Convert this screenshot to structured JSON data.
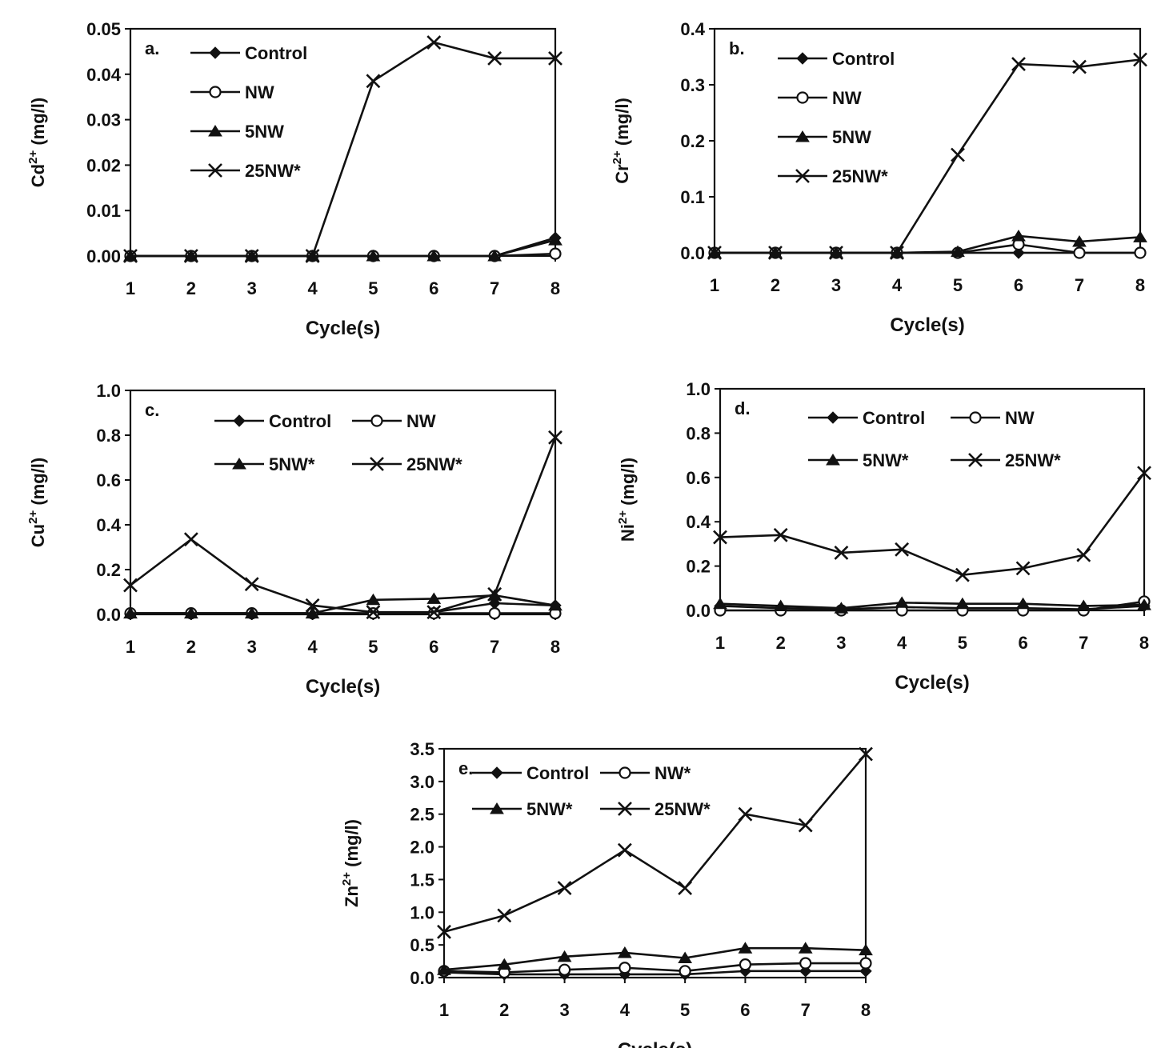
{
  "colors": {
    "ink": "#111111",
    "background": "#ffffff"
  },
  "chart_data": [
    {
      "type": "line",
      "panel_label": "a.",
      "ylabel_base": "Cd",
      "ylabel_sup": "2+",
      "ylabel_unit": " (mg/l)",
      "xlabel": "Cycle(s)",
      "x": [
        1,
        2,
        3,
        4,
        5,
        6,
        7,
        8
      ],
      "ylim": [
        0,
        0.05
      ],
      "yticks": [
        "0.00",
        "0.01",
        "0.02",
        "0.03",
        "0.04",
        "0.05"
      ],
      "legend_layout": "column",
      "series": [
        {
          "name": "Control",
          "marker": "diamond",
          "values": [
            0,
            0,
            0,
            0,
            0,
            0,
            0,
            0.004
          ]
        },
        {
          "name": "NW",
          "marker": "circle",
          "values": [
            0,
            0,
            0,
            0,
            0,
            0,
            0,
            0.0005
          ]
        },
        {
          "name": "5NW",
          "marker": "triangle",
          "values": [
            0,
            0,
            0,
            0,
            0,
            0,
            0,
            0.0035
          ]
        },
        {
          "name": "25NW*",
          "marker": "x",
          "values": [
            0,
            0,
            0,
            0,
            0.0385,
            0.047,
            0.0435,
            0.0435
          ]
        }
      ]
    },
    {
      "type": "line",
      "panel_label": "b.",
      "ylabel_base": "Cr",
      "ylabel_sup": "2+",
      "ylabel_unit": " (mg/l)",
      "xlabel": "Cycle(s)",
      "x": [
        1,
        2,
        3,
        4,
        5,
        6,
        7,
        8
      ],
      "ylim": [
        0,
        0.4
      ],
      "yticks": [
        "0.0",
        "0.1",
        "0.2",
        "0.3",
        "0.4"
      ],
      "legend_layout": "column",
      "series": [
        {
          "name": "Control",
          "marker": "diamond",
          "values": [
            0,
            0,
            0,
            0,
            0,
            0,
            0,
            0
          ]
        },
        {
          "name": "NW",
          "marker": "circle",
          "values": [
            0,
            0,
            0,
            0,
            0,
            0.015,
            0,
            0
          ]
        },
        {
          "name": "5NW",
          "marker": "triangle",
          "values": [
            0,
            0,
            0,
            0,
            0.002,
            0.03,
            0.02,
            0.028
          ]
        },
        {
          "name": "25NW*",
          "marker": "x",
          "values": [
            0,
            0,
            0,
            0,
            0.175,
            0.337,
            0.332,
            0.345
          ]
        }
      ]
    },
    {
      "type": "line",
      "panel_label": "c.",
      "ylabel_base": "Cu",
      "ylabel_sup": "2+",
      "ylabel_unit": " (mg/l)",
      "xlabel": "Cycle(s)",
      "x": [
        1,
        2,
        3,
        4,
        5,
        6,
        7,
        8
      ],
      "ylim": [
        0,
        1.0
      ],
      "yticks": [
        "0.0",
        "0.2",
        "0.4",
        "0.6",
        "0.8",
        "1.0"
      ],
      "legend_layout": "grid",
      "series": [
        {
          "name": "Control",
          "marker": "diamond",
          "values": [
            0.005,
            0.005,
            0.005,
            0.005,
            0.005,
            0.01,
            0.05,
            0.04
          ]
        },
        {
          "name": "NW",
          "marker": "circle",
          "values": [
            0.005,
            0.005,
            0.005,
            0.005,
            0.005,
            0.005,
            0.005,
            0.005
          ]
        },
        {
          "name": "5NW*",
          "marker": "triangle",
          "values": [
            0.005,
            0.005,
            0.005,
            0.005,
            0.065,
            0.07,
            0.085,
            0.04
          ]
        },
        {
          "name": "25NW*",
          "marker": "x",
          "values": [
            0.13,
            0.335,
            0.135,
            0.04,
            0.01,
            0.01,
            0.09,
            0.79
          ]
        }
      ]
    },
    {
      "type": "line",
      "panel_label": "d.",
      "ylabel_base": "Ni",
      "ylabel_sup": "2+",
      "ylabel_unit": " (mg/l)",
      "xlabel": "Cycle(s)",
      "x": [
        1,
        2,
        3,
        4,
        5,
        6,
        7,
        8
      ],
      "ylim": [
        0,
        1.0
      ],
      "yticks": [
        "0.0",
        "0.2",
        "0.4",
        "0.6",
        "0.8",
        "1.0"
      ],
      "legend_layout": "grid",
      "series": [
        {
          "name": "Control",
          "marker": "diamond",
          "values": [
            0.02,
            0.01,
            0.005,
            0.015,
            0.01,
            0.01,
            0.005,
            0.02
          ]
        },
        {
          "name": "NW",
          "marker": "circle",
          "values": [
            0,
            0,
            0,
            0,
            0,
            0,
            0,
            0.04
          ]
        },
        {
          "name": "5NW*",
          "marker": "triangle",
          "values": [
            0.03,
            0.02,
            0.01,
            0.035,
            0.03,
            0.03,
            0.02,
            0.025
          ]
        },
        {
          "name": "25NW*",
          "marker": "x",
          "values": [
            0.33,
            0.34,
            0.26,
            0.275,
            0.16,
            0.19,
            0.25,
            0.62
          ]
        }
      ]
    },
    {
      "type": "line",
      "panel_label": "e.",
      "ylabel_base": "Zn",
      "ylabel_sup": "2+",
      "ylabel_unit": " (mg/l)",
      "xlabel": "Cycle(s)",
      "x": [
        1,
        2,
        3,
        4,
        5,
        6,
        7,
        8
      ],
      "ylim": [
        0,
        3.5
      ],
      "yticks": [
        "0.0",
        "0.5",
        "1.0",
        "1.5",
        "2.0",
        "2.5",
        "3.0",
        "3.5"
      ],
      "legend_layout": "grid",
      "series": [
        {
          "name": "Control",
          "marker": "diamond",
          "values": [
            0.08,
            0.05,
            0.05,
            0.05,
            0.05,
            0.1,
            0.1,
            0.1
          ]
        },
        {
          "name": "NW*",
          "marker": "circle",
          "values": [
            0.1,
            0.08,
            0.12,
            0.15,
            0.1,
            0.2,
            0.22,
            0.22
          ]
        },
        {
          "name": "5NW*",
          "marker": "triangle",
          "values": [
            0.12,
            0.2,
            0.32,
            0.38,
            0.3,
            0.45,
            0.45,
            0.42
          ]
        },
        {
          "name": "25NW*",
          "marker": "x",
          "values": [
            0.7,
            0.95,
            1.37,
            1.95,
            1.37,
            2.5,
            2.33,
            3.42
          ]
        }
      ]
    }
  ]
}
